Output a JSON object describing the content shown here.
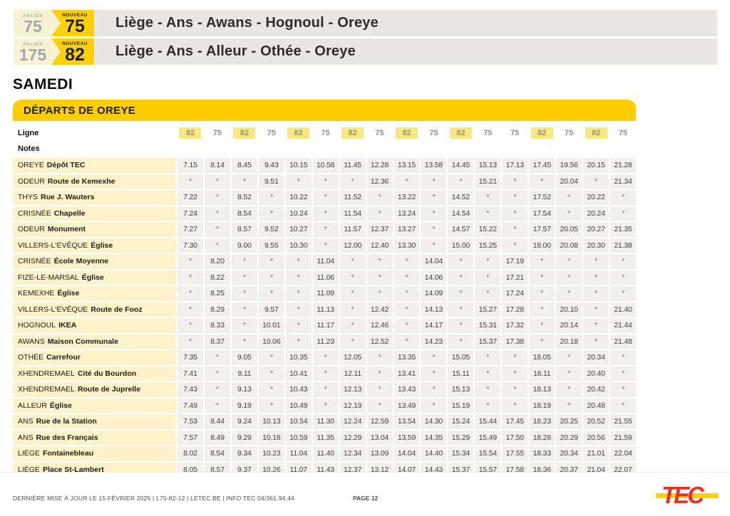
{
  "header": {
    "ancien_label": "ANCIEN",
    "nouveau_label": "NOUVEAU",
    "lines": [
      {
        "ancien": "75",
        "nouveau": "75",
        "route": "Liège - Ans - Awans - Hognoul - Oreye"
      },
      {
        "ancien": "175",
        "nouveau": "82",
        "route": "Liège - Ans - Alleur - Othée - Oreye"
      }
    ]
  },
  "day_title": "SAMEDI",
  "board": {
    "section_title": "DÉPARTS DE OREYE",
    "ligne_label": "Ligne",
    "notes_label": "Notes",
    "highlight_line": "82",
    "lines": [
      "82",
      "75",
      "82",
      "75",
      "82",
      "75",
      "82",
      "75",
      "82",
      "75",
      "82",
      "75",
      "75",
      "82",
      "75",
      "82",
      "75"
    ],
    "stops": [
      {
        "city": "OREYE",
        "stop": "Dépôt TEC",
        "times": [
          "7.15",
          "8.14",
          "8.45",
          "9.43",
          "10.15",
          "10.58",
          "11.45",
          "12.28",
          "13.15",
          "13.58",
          "14.45",
          "15.13",
          "17.13",
          "17.45",
          "19.56",
          "20.15",
          "21.28"
        ]
      },
      {
        "city": "ODEUR",
        "stop": "Route de Kemexhe",
        "times": [
          "*",
          "*",
          "*",
          "9.51",
          "*",
          "*",
          "*",
          "12.36",
          "*",
          "*",
          "*",
          "15.21",
          "*",
          "*",
          "20.04",
          "*",
          "21.34"
        ]
      },
      {
        "city": "THYS",
        "stop": "Rue J. Wauters",
        "times": [
          "7.22",
          "*",
          "8.52",
          "*",
          "10.22",
          "*",
          "11.52",
          "*",
          "13.22",
          "*",
          "14.52",
          "*",
          "*",
          "17.52",
          "*",
          "20.22",
          "*"
        ]
      },
      {
        "city": "CRISNÉE",
        "stop": "Chapelle",
        "times": [
          "7.24",
          "*",
          "8.54",
          "*",
          "10.24",
          "*",
          "11.54",
          "*",
          "13.24",
          "*",
          "14.54",
          "*",
          "*",
          "17.54",
          "*",
          "20.24",
          "*"
        ]
      },
      {
        "city": "ODEUR",
        "stop": "Monument",
        "times": [
          "7.27",
          "*",
          "8.57",
          "9.52",
          "10.27",
          "*",
          "11.57",
          "12.37",
          "13.27",
          "*",
          "14.57",
          "15.22",
          "*",
          "17.57",
          "20.05",
          "20.27",
          "21.35"
        ]
      },
      {
        "city": "VILLERS-L'ÉVÊQUE",
        "stop": "Église",
        "times": [
          "7.30",
          "*",
          "9.00",
          "9.55",
          "10.30",
          "*",
          "12.00",
          "12.40",
          "13.30",
          "*",
          "15.00",
          "15.25",
          "*",
          "18.00",
          "20.08",
          "20.30",
          "21.38"
        ]
      },
      {
        "city": "CRISNÉE",
        "stop": "École Moyenne",
        "times": [
          "*",
          "8.20",
          "*",
          "*",
          "*",
          "11.04",
          "*",
          "*",
          "*",
          "14.04",
          "*",
          "*",
          "17.19",
          "*",
          "*",
          "*",
          "*"
        ]
      },
      {
        "city": "FIZE-LE-MARSAL",
        "stop": "Église",
        "times": [
          "*",
          "8.22",
          "*",
          "*",
          "*",
          "11.06",
          "*",
          "*",
          "*",
          "14.06",
          "*",
          "*",
          "17.21",
          "*",
          "*",
          "*",
          "*"
        ]
      },
      {
        "city": "KEMEXHE",
        "stop": "Église",
        "times": [
          "*",
          "8.25",
          "*",
          "*",
          "*",
          "11.09",
          "*",
          "*",
          "*",
          "14.09",
          "*",
          "*",
          "17.24",
          "*",
          "*",
          "*",
          "*"
        ]
      },
      {
        "city": "VILLERS-L'ÉVÊQUE",
        "stop": "Route de Fooz",
        "times": [
          "*",
          "8.29",
          "*",
          "9.57",
          "*",
          "11.13",
          "*",
          "12.42",
          "*",
          "14.13",
          "*",
          "15.27",
          "17.28",
          "*",
          "20.10",
          "*",
          "21.40"
        ]
      },
      {
        "city": "HOGNOUL",
        "stop": "IKEA",
        "times": [
          "*",
          "8.33",
          "*",
          "10.01",
          "*",
          "11.17",
          "*",
          "12.46",
          "*",
          "14.17",
          "*",
          "15.31",
          "17.32",
          "*",
          "20.14",
          "*",
          "21.44"
        ]
      },
      {
        "city": "AWANS",
        "stop": "Maison Communale",
        "times": [
          "*",
          "8.37",
          "*",
          "10.06",
          "*",
          "11.23",
          "*",
          "12.52",
          "*",
          "14.23",
          "*",
          "15.37",
          "17.38",
          "*",
          "20.18",
          "*",
          "21.48"
        ]
      },
      {
        "city": "OTHÉE",
        "stop": "Carrefour",
        "times": [
          "7.35",
          "*",
          "9.05",
          "*",
          "10.35",
          "*",
          "12.05",
          "*",
          "13.35",
          "*",
          "15.05",
          "*",
          "*",
          "18.05",
          "*",
          "20.34",
          "*"
        ]
      },
      {
        "city": "XHENDREMAEL",
        "stop": "Cité du Bourdon",
        "times": [
          "7.41",
          "*",
          "9.11",
          "*",
          "10.41",
          "*",
          "12.11",
          "*",
          "13.41",
          "*",
          "15.11",
          "*",
          "*",
          "18.11",
          "*",
          "20.40",
          "*"
        ]
      },
      {
        "city": "XHENDREMAEL",
        "stop": "Route de Juprelle",
        "times": [
          "7.43",
          "*",
          "9.13",
          "*",
          "10.43",
          "*",
          "12.13",
          "*",
          "13.43",
          "*",
          "15.13",
          "*",
          "*",
          "18.13",
          "*",
          "20.42",
          "*"
        ]
      },
      {
        "city": "ALLEUR",
        "stop": "Église",
        "times": [
          "7.49",
          "*",
          "9.19",
          "*",
          "10.49",
          "*",
          "12.19",
          "*",
          "13.49",
          "*",
          "15.19",
          "*",
          "*",
          "18.19",
          "*",
          "20.48",
          "*"
        ]
      },
      {
        "city": "ANS",
        "stop": "Rue de la Station",
        "times": [
          "7.53",
          "8.44",
          "9.24",
          "10.13",
          "10.54",
          "11.30",
          "12.24",
          "12.59",
          "13.54",
          "14.30",
          "15.24",
          "15.44",
          "17.45",
          "18.23",
          "20.25",
          "20.52",
          "21.55"
        ]
      },
      {
        "city": "ANS",
        "stop": "Rue des Français",
        "times": [
          "7.57",
          "8.49",
          "9.29",
          "10.18",
          "10.59",
          "11.35",
          "12.29",
          "13.04",
          "13.59",
          "14.35",
          "15.29",
          "15.49",
          "17.50",
          "18.28",
          "20.29",
          "20.56",
          "21.59"
        ]
      },
      {
        "city": "LIÈGE",
        "stop": "Fontainebleau",
        "times": [
          "8.02",
          "8.54",
          "9.34",
          "10.23",
          "11.04",
          "11.40",
          "12.34",
          "13.09",
          "14.04",
          "14.40",
          "15.34",
          "15.54",
          "17.55",
          "18.33",
          "20.34",
          "21.01",
          "22.04"
        ]
      },
      {
        "city": "LIÈGE",
        "stop": "Place St-Lambert",
        "times": [
          "8.05",
          "8.57",
          "9.37",
          "10.26",
          "11.07",
          "11.43",
          "12.37",
          "13.12",
          "14.07",
          "14.43",
          "15.37",
          "15.57",
          "17.58",
          "18.36",
          "20.37",
          "21.04",
          "22.07"
        ]
      }
    ]
  },
  "footer": {
    "info": "DERNIÈRE MISE À JOUR LE 15 FÉVRIER 2025  |  L75-82-12  |  LETEC.BE  |  INFO TEC 04/361.94.44",
    "page": "PAGE 12",
    "logo": "TEC"
  },
  "colors": {
    "tec_yellow": "#ffd103",
    "section_yellow": "#ffce00",
    "pale_yellow": "#f6f3d5",
    "stop_cell_yellow": "#fdf2c9",
    "line_badge_yellow": "#f9e87d",
    "time_cell_gray": "#f1f0ef",
    "route_bar_gray": "#e8e7e5",
    "tec_red": "#e6332a"
  }
}
